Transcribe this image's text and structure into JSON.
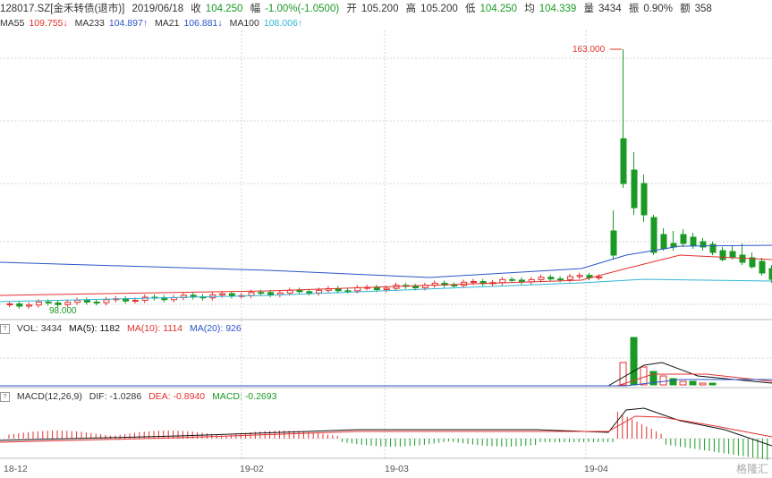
{
  "header": {
    "code": "128017.SZ[金禾转债(退市)]",
    "date": "2019/06/18",
    "close_label": "收",
    "close": "104.250",
    "change_label": "幅",
    "change": "-1.00%(-1.0500)",
    "open_label": "开",
    "open": "105.200",
    "high_label": "高",
    "high": "105.200",
    "low_label": "低",
    "low": "104.250",
    "avg_label": "均",
    "avg": "104.339",
    "vol_label": "量",
    "vol": "3434",
    "amp_label": "振",
    "amp": "0.90%",
    "amt_label": "额",
    "amt": "358"
  },
  "ma_legend": [
    {
      "label": "MA55",
      "value": "109.755↓",
      "color": "#e2312e"
    },
    {
      "label": "MA233",
      "value": "104.897↑",
      "color": "#2b55c9"
    },
    {
      "label": "MA21",
      "value": "106.881↓",
      "color": "#2b55c9"
    },
    {
      "label": "MA100",
      "value": "108.006↑",
      "color": "#31b5d6"
    }
  ],
  "annotations": {
    "max_label": "163.000",
    "min_label": "98.000"
  },
  "volume": {
    "title": "VOL: 3434",
    "ma5": "MA(5): 1182",
    "ma10": "MA(10): 1114",
    "ma20": "MA(20): 926"
  },
  "macd": {
    "title": "MACD(12,26,9)",
    "dif": "DIF: -1.0286",
    "dea": "DEA: -0.8940",
    "macd": "MACD: -0.2693"
  },
  "x_axis": [
    "18-12",
    "19-02",
    "19-03",
    "19-04"
  ],
  "watermark": "格隆汇",
  "colors": {
    "up": "#e2312e",
    "down": "#1a9a25",
    "grid": "#d5d5d5"
  }
}
